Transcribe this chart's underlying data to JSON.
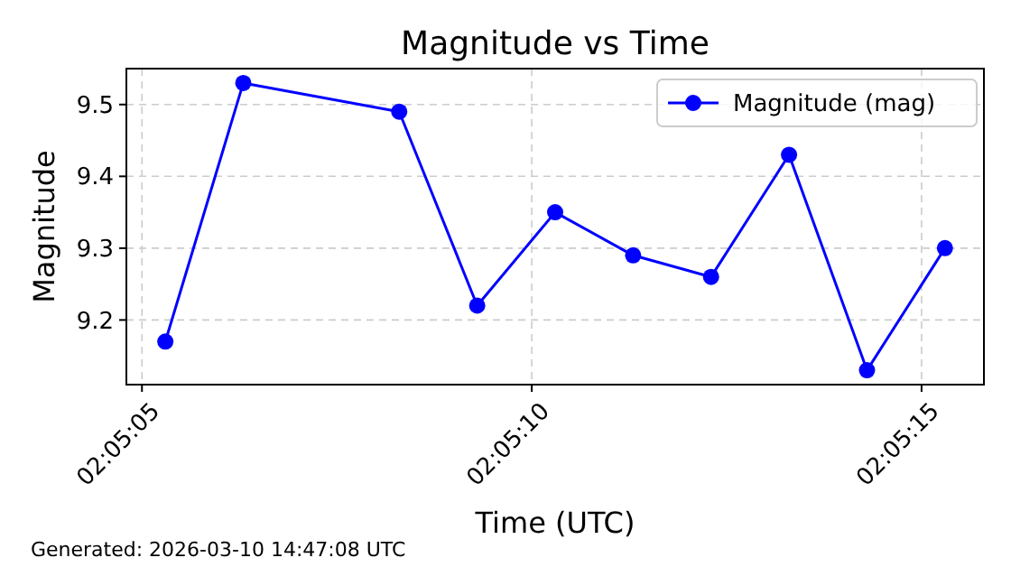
{
  "chart_data": {
    "type": "line",
    "title": "Magnitude vs Time",
    "xlabel": "Time (UTC)",
    "ylabel": "Magnitude",
    "x": [
      2.0848056,
      2.0850833,
      2.0856389,
      2.0859167,
      2.0861944,
      2.0864722,
      2.08675,
      2.0870278,
      2.0873056,
      2.0875833
    ],
    "series": [
      {
        "name": "Magnitude (mag)",
        "color": "#0000ff",
        "values": [
          9.17,
          9.53,
          9.49,
          9.22,
          9.35,
          9.29,
          9.26,
          9.43,
          9.13,
          9.3
        ]
      }
    ],
    "xlim": [
      2.0846667,
      2.0877222
    ],
    "xticks": [
      {
        "value": 2.0847222,
        "label": "02:05:05"
      },
      {
        "value": 2.0861111,
        "label": "02:05:10"
      },
      {
        "value": 2.0875,
        "label": "02:05:15"
      }
    ],
    "ylim": [
      9.11,
      9.55
    ],
    "yticks": [
      9.2,
      9.3,
      9.4,
      9.5
    ],
    "grid": true,
    "legend": "top right",
    "marker": "circle",
    "line_style": "solid",
    "annotations": [
      "Generated: 2026-03-10 14:47:08 UTC"
    ]
  }
}
